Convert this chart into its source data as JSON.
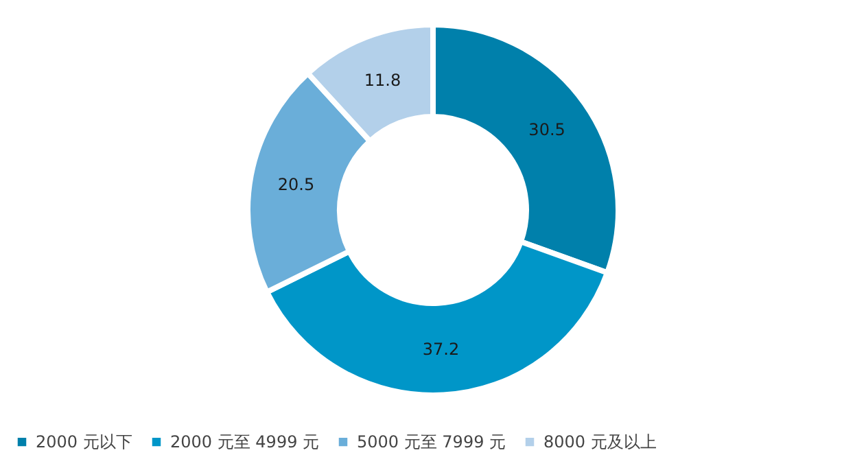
{
  "chart_data": {
    "type": "donut",
    "categories": [
      "2000 元以下",
      "2000 元至 4999 元",
      "5000 元至 7999 元",
      "8000 元及以上"
    ],
    "values": [
      30.5,
      37.2,
      20.5,
      11.8
    ],
    "colors": [
      "#0080ab",
      "#0096c8",
      "#6aaed9",
      "#b3d0ea"
    ],
    "data_labels": true,
    "legend": "bottom"
  }
}
